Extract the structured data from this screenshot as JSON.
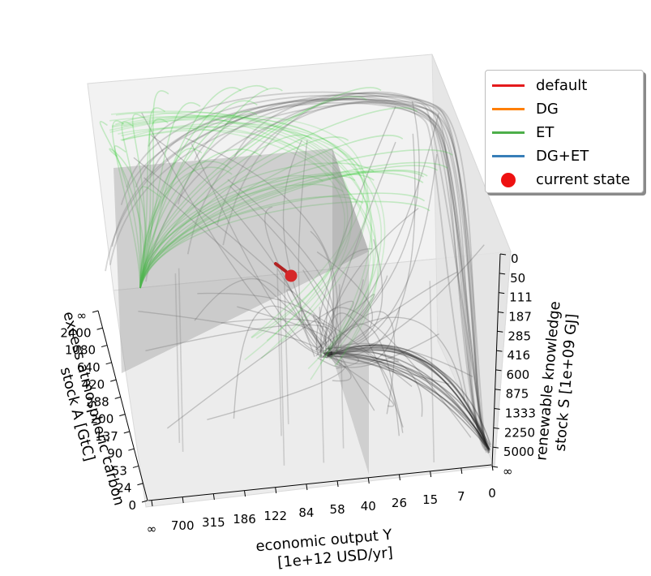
{
  "chart_data": {
    "type": "line",
    "title": "",
    "axes": {
      "x": {
        "label_line1": "economic output Y",
        "label_line2": "[1e+12 USD/yr]",
        "ticks": [
          "∞",
          "700",
          "315",
          "186",
          "122",
          "84",
          "58",
          "40",
          "26",
          "15",
          "7",
          "0"
        ]
      },
      "y": {
        "label_line1": "excess atmospheric carbon",
        "label_line2": "stock A [GtC]",
        "ticks": [
          "∞",
          "2400",
          "1080",
          "640",
          "420",
          "288",
          "200",
          "137",
          "90",
          "53",
          "24",
          "0"
        ]
      },
      "z": {
        "label_line1": "renewable knowledge",
        "label_line2": "stock S [1e+09 GJ]",
        "ticks": [
          "∞",
          "5000",
          "2250",
          "1333",
          "875",
          "600",
          "416",
          "285",
          "187",
          "111",
          "50",
          "0"
        ]
      }
    },
    "legend": {
      "placement": "top-right",
      "entries": [
        {
          "name": "default",
          "color": "#e41a1c",
          "kind": "line"
        },
        {
          "name": "DG",
          "color": "#ff7f00",
          "kind": "line"
        },
        {
          "name": "ET",
          "color": "#4daf4a",
          "kind": "line"
        },
        {
          "name": "DG+ET",
          "color": "#377eb8",
          "kind": "line"
        },
        {
          "name": "current state",
          "color": "#ee1111",
          "kind": "marker"
        }
      ]
    },
    "series_colors": {
      "flow_default": "#4a4a4a",
      "flow_ET": "#33cc33",
      "current_state": "#d62728"
    }
  }
}
